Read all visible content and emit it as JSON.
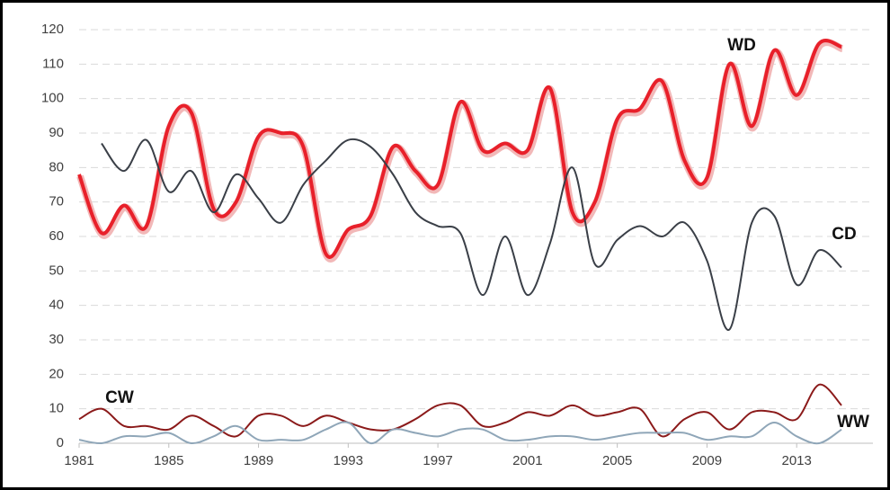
{
  "chart_data": {
    "type": "line",
    "x": [
      1981,
      1982,
      1983,
      1984,
      1985,
      1986,
      1987,
      1988,
      1989,
      1990,
      1991,
      1992,
      1993,
      1994,
      1995,
      1996,
      1997,
      1998,
      1999,
      2000,
      2001,
      2002,
      2003,
      2004,
      2005,
      2006,
      2007,
      2008,
      2009,
      2010,
      2011,
      2012,
      2013,
      2014,
      2015
    ],
    "xlim": [
      1981,
      2016.4
    ],
    "xticks": [
      1981,
      1985,
      1989,
      1993,
      1997,
      2001,
      2005,
      2009,
      2013
    ],
    "ylim": [
      0,
      120
    ],
    "yticks": [
      0,
      10,
      20,
      30,
      40,
      50,
      60,
      70,
      80,
      90,
      100,
      110,
      120
    ],
    "grid": true,
    "series": [
      {
        "name": "WD",
        "color": "#e8202a",
        "values": [
          78,
          61,
          69,
          63,
          92,
          96,
          68,
          70,
          89,
          90,
          86,
          55,
          62,
          66,
          86,
          79,
          75,
          99,
          85,
          87,
          85,
          103,
          67,
          70,
          94,
          97,
          105,
          82,
          77,
          110,
          92,
          114,
          101,
          116,
          115
        ]
      },
      {
        "name": "CD",
        "color": "#3a3f47",
        "values": [
          null,
          87,
          79,
          88,
          73,
          79,
          67,
          78,
          71,
          64,
          75,
          82,
          88,
          86,
          78,
          67,
          63,
          61,
          43,
          60,
          43,
          58,
          80,
          52,
          59,
          63,
          60,
          64,
          53,
          33,
          64,
          66,
          46,
          56,
          51
        ]
      },
      {
        "name": "CW",
        "color": "#8b1a1a",
        "values": [
          7,
          10,
          5,
          5,
          4,
          8,
          5,
          2,
          8,
          8,
          5,
          8,
          6,
          4,
          4,
          7,
          11,
          11,
          5,
          6,
          9,
          8,
          11,
          8,
          9,
          10,
          2,
          7,
          9,
          4,
          9,
          9,
          7,
          17,
          11
        ]
      },
      {
        "name": "WW",
        "color": "#8fa6b8",
        "values": [
          1,
          0,
          2,
          2,
          3,
          0,
          2,
          5,
          1,
          1,
          1,
          4,
          6,
          0,
          4,
          3,
          2,
          4,
          4,
          1,
          1,
          2,
          2,
          1,
          2,
          3,
          3,
          3,
          1,
          2,
          2,
          6,
          2,
          0,
          4
        ]
      }
    ]
  }
}
